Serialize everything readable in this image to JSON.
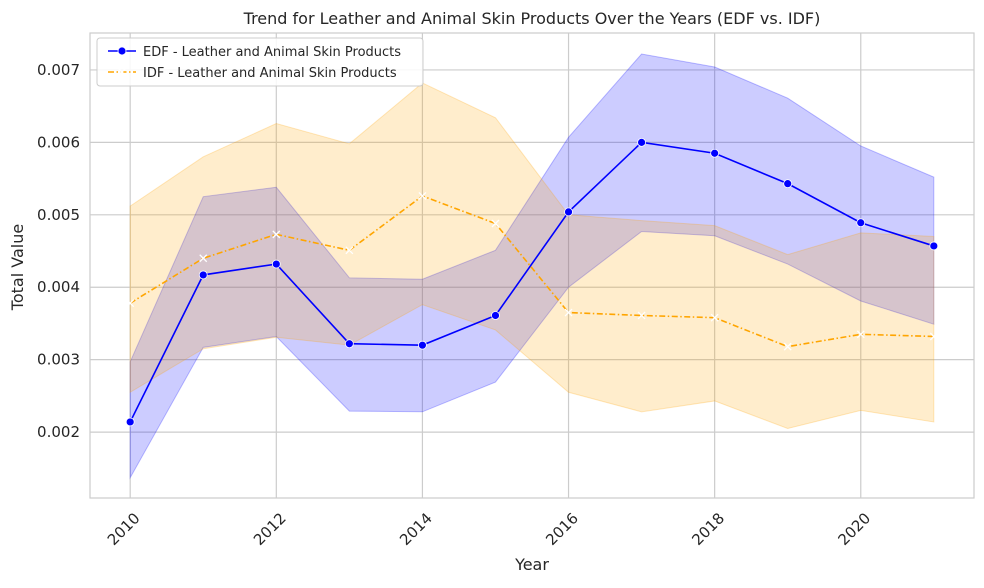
{
  "chart_data": {
    "type": "line",
    "title": "Trend for Leather and Animal Skin Products Over the Years (EDF vs. IDF)",
    "xlabel": "Year",
    "ylabel": "Total Value",
    "xlim": [
      2009.45,
      2021.55
    ],
    "ylim": [
      0.00109,
      0.00751
    ],
    "x_ticks": [
      2010,
      2012,
      2014,
      2016,
      2018,
      2020
    ],
    "x_tick_labels": [
      "2010",
      "2012",
      "2014",
      "2016",
      "2018",
      "2020"
    ],
    "y_ticks": [
      0.002,
      0.003,
      0.004,
      0.005,
      0.006,
      0.007
    ],
    "y_tick_labels": [
      "0.002",
      "0.003",
      "0.004",
      "0.005",
      "0.006",
      "0.007"
    ],
    "grid": true,
    "legend_position": "top-left",
    "x": [
      2010,
      2011,
      2012,
      2013,
      2014,
      2015,
      2016,
      2017,
      2018,
      2019,
      2020,
      2021
    ],
    "series": [
      {
        "name": "EDF - Leather and Animal Skin Products",
        "color": "#0000ff",
        "band_color": "#0000ff",
        "line_style": "solid",
        "marker": "circle",
        "values": [
          0.00214,
          0.00417,
          0.00432,
          0.00322,
          0.0032,
          0.00361,
          0.00504,
          0.006,
          0.00585,
          0.00543,
          0.00489,
          0.00457
        ],
        "ci_lower": [
          0.00137,
          0.00317,
          0.00332,
          0.00229,
          0.00228,
          0.00269,
          0.004,
          0.00477,
          0.00471,
          0.00432,
          0.00381,
          0.00349
        ],
        "ci_upper": [
          0.00297,
          0.00525,
          0.00538,
          0.00413,
          0.00411,
          0.00451,
          0.00607,
          0.00722,
          0.00704,
          0.00661,
          0.00595,
          0.00552
        ]
      },
      {
        "name": "IDF - Leather and Animal Skin Products",
        "color": "#ffa500",
        "band_color": "#ffa500",
        "line_style": "dashdot",
        "marker": "x",
        "values": [
          0.00378,
          0.0044,
          0.00473,
          0.00451,
          0.00526,
          0.00488,
          0.00365,
          0.00361,
          0.00358,
          0.00318,
          0.00335,
          0.00332
        ],
        "ci_lower": [
          0.00255,
          0.00315,
          0.00331,
          0.0032,
          0.00376,
          0.00341,
          0.00255,
          0.00228,
          0.00243,
          0.00205,
          0.0023,
          0.00214
        ],
        "ci_upper": [
          0.00512,
          0.0058,
          0.00626,
          0.00598,
          0.00682,
          0.00634,
          0.005,
          0.00492,
          0.00485,
          0.00445,
          0.00475,
          0.0047
        ]
      }
    ]
  }
}
